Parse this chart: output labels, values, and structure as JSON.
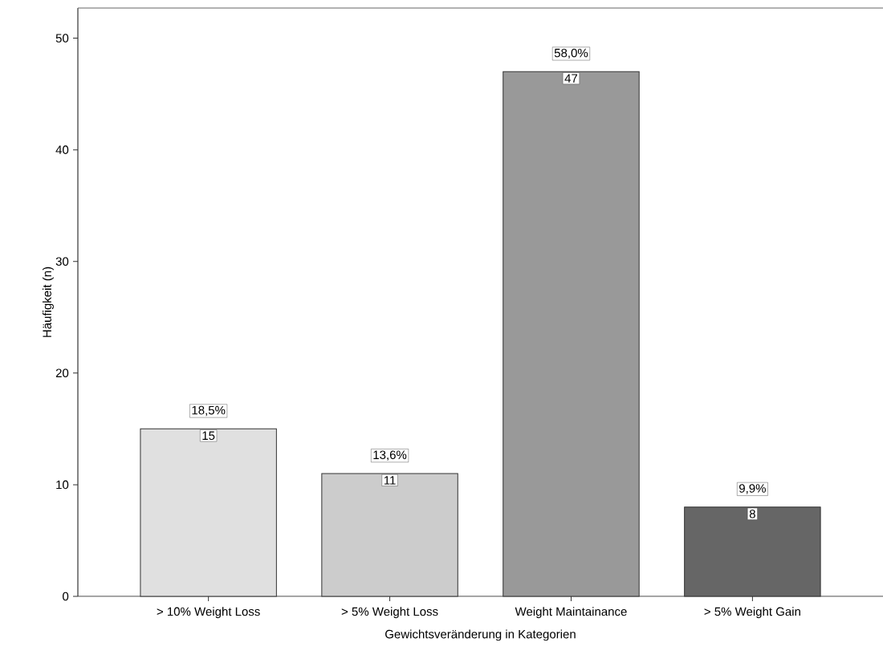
{
  "chart_data": {
    "type": "bar",
    "xlabel": "Gewichtsveränderung in Kategorien",
    "ylabel": "Häufigkeit (n)",
    "categories": [
      "> 10% Weight Loss",
      "> 5% Weight Loss",
      "Weight Maintainance",
      "> 5% Weight Gain"
    ],
    "values": [
      15,
      11,
      47,
      8
    ],
    "colors": [
      "#e0e0e0",
      "#cccccc",
      "#999999",
      "#666666"
    ],
    "ylim": [
      0,
      52.7
    ],
    "yticks": [
      0,
      10,
      20,
      30,
      40,
      50
    ],
    "data_labels": true,
    "grid": false,
    "annotations": [
      {
        "text": "18,5%",
        "x": "> 10% Weight Loss",
        "y": 15
      },
      {
        "text": "13,6%",
        "x": "> 5% Weight Loss",
        "y": 11
      },
      {
        "text": "58,0%",
        "x": "Weight Maintainance",
        "y": 47
      },
      {
        "text": "9,9%",
        "x": "> 5% Weight Gain",
        "y": 8
      }
    ]
  }
}
